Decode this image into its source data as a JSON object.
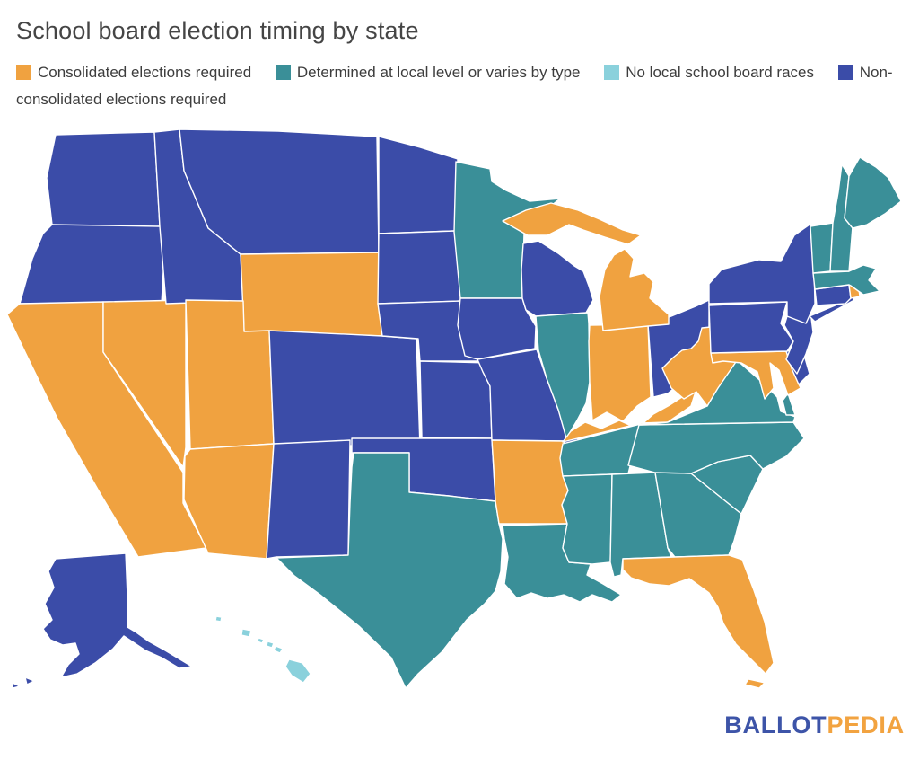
{
  "title": "School board election timing by state",
  "legend": {
    "items": [
      {
        "key": "consolidated",
        "label": "Consolidated elections required",
        "color": "#F0A240"
      },
      {
        "key": "determined_local",
        "label": "Determined at local level or varies by type",
        "color": "#3A8F98"
      },
      {
        "key": "no_races",
        "label": "No local school board races",
        "color": "#8AD1DC"
      },
      {
        "key": "non_consolidated",
        "label": "Non-consolidated elections required",
        "color": "#3B4CA8"
      }
    ]
  },
  "chart_data": {
    "type": "choropleth-map",
    "region": "United States",
    "title": "School board election timing by state",
    "border_color": "#FFFFFF",
    "background_color": "#FFFFFF",
    "legend_position": "top",
    "categories": [
      {
        "key": "consolidated",
        "label": "Consolidated elections required",
        "color": "#F0A240"
      },
      {
        "key": "determined_local",
        "label": "Determined at local level or varies by type",
        "color": "#3A8F98"
      },
      {
        "key": "no_races",
        "label": "No local school board races",
        "color": "#8AD1DC"
      },
      {
        "key": "non_consolidated",
        "label": "Non-consolidated elections required",
        "color": "#3B4CA8"
      }
    ],
    "state_categories": {
      "AL": "determined_local",
      "AK": "non_consolidated",
      "AZ": "consolidated",
      "AR": "consolidated",
      "CA": "consolidated",
      "CO": "non_consolidated",
      "CT": "non_consolidated",
      "DE": "non_consolidated",
      "FL": "consolidated",
      "GA": "determined_local",
      "HI": "no_races",
      "ID": "non_consolidated",
      "IL": "determined_local",
      "IN": "consolidated",
      "IA": "non_consolidated",
      "KS": "non_consolidated",
      "KY": "consolidated",
      "LA": "determined_local",
      "ME": "determined_local",
      "MD": "consolidated",
      "MA": "determined_local",
      "MI": "consolidated",
      "MN": "determined_local",
      "MS": "determined_local",
      "MO": "non_consolidated",
      "MT": "non_consolidated",
      "NE": "non_consolidated",
      "NV": "consolidated",
      "NH": "determined_local",
      "NJ": "non_consolidated",
      "NM": "non_consolidated",
      "NY": "non_consolidated",
      "NC": "determined_local",
      "ND": "non_consolidated",
      "OH": "non_consolidated",
      "OK": "non_consolidated",
      "OR": "non_consolidated",
      "PA": "non_consolidated",
      "RI": "consolidated",
      "SC": "determined_local",
      "SD": "non_consolidated",
      "TN": "determined_local",
      "TX": "determined_local",
      "UT": "consolidated",
      "VT": "determined_local",
      "VA": "determined_local",
      "WA": "non_consolidated",
      "WV": "consolidated",
      "WI": "non_consolidated",
      "WY": "consolidated"
    }
  },
  "branding": {
    "logo_text_primary": "BALLOT",
    "logo_text_secondary": "PEDIA",
    "primary_color": "#3D54A8",
    "secondary_color": "#F2A340"
  }
}
